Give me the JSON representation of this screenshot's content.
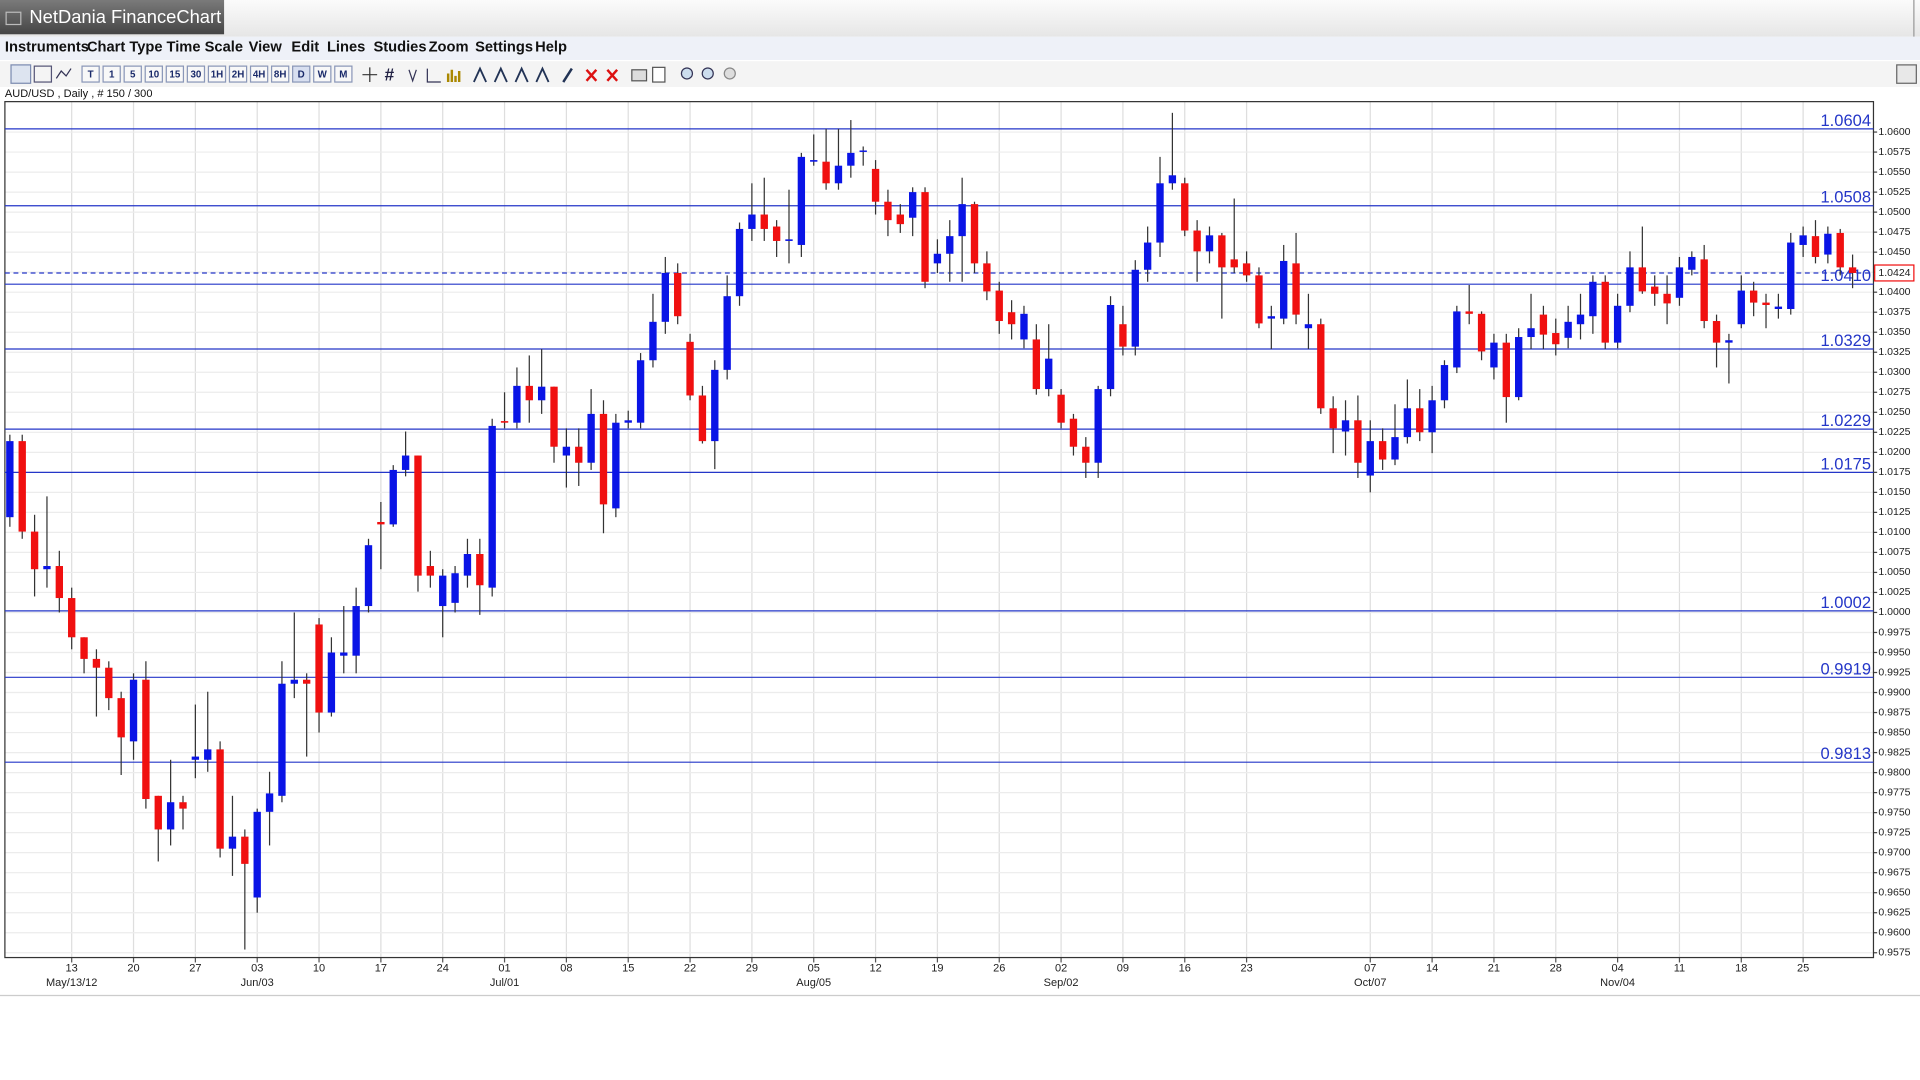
{
  "window": {
    "title": "NetDania FinanceChart",
    "menu": [
      "Instruments",
      "Chart Type",
      "Time Scale",
      "View",
      "Edit",
      "Lines",
      "Studies",
      "Zoom",
      "Settings",
      "Help"
    ],
    "intervals": [
      "T",
      "1",
      "5",
      "10",
      "15",
      "30",
      "1H",
      "2H",
      "4H",
      "8H",
      "D",
      "W",
      "M"
    ],
    "instrument_label": "AUD/USD , Daily , # 150 / 300"
  },
  "chart_data": {
    "type": "candlestick",
    "up_color": "#0a14e6",
    "down_color": "#f01010",
    "level_color": "#2436c8",
    "grid": true,
    "ylim": [
      0.9569,
      1.0638
    ],
    "yticks": [
      {
        "value": 0.9575,
        "label": "0.9575"
      },
      {
        "value": 0.96,
        "label": "0.9600"
      },
      {
        "value": 0.9625,
        "label": "0.9625"
      },
      {
        "value": 0.965,
        "label": "0.9650"
      },
      {
        "value": 0.9675,
        "label": "0.9675"
      },
      {
        "value": 0.97,
        "label": "0.9700"
      },
      {
        "value": 0.9725,
        "label": "0.9725"
      },
      {
        "value": 0.975,
        "label": "0.9750"
      },
      {
        "value": 0.9775,
        "label": "0.9775"
      },
      {
        "value": 0.98,
        "label": "0.9800"
      },
      {
        "value": 0.9825,
        "label": "0.9825"
      },
      {
        "value": 0.985,
        "label": "0.9850"
      },
      {
        "value": 0.9875,
        "label": "0.9875"
      },
      {
        "value": 0.99,
        "label": "0.9900"
      },
      {
        "value": 0.9925,
        "label": "0.9925"
      },
      {
        "value": 0.995,
        "label": "0.9950"
      },
      {
        "value": 0.9975,
        "label": "0.9975"
      },
      {
        "value": 1.0,
        "label": "1.0000"
      },
      {
        "value": 1.0025,
        "label": "1.0025"
      },
      {
        "value": 1.005,
        "label": "1.0050"
      },
      {
        "value": 1.0075,
        "label": "1.0075"
      },
      {
        "value": 1.01,
        "label": "1.0100"
      },
      {
        "value": 1.0125,
        "label": "1.0125"
      },
      {
        "value": 1.015,
        "label": "1.0150"
      },
      {
        "value": 1.0175,
        "label": "1.0175"
      },
      {
        "value": 1.02,
        "label": "1.0200"
      },
      {
        "value": 1.0225,
        "label": "1.0225"
      },
      {
        "value": 1.025,
        "label": "1.0250"
      },
      {
        "value": 1.0275,
        "label": "1.0275"
      },
      {
        "value": 1.03,
        "label": "1.0300"
      },
      {
        "value": 1.0325,
        "label": "1.0325"
      },
      {
        "value": 1.035,
        "label": "1.0350"
      },
      {
        "value": 1.0375,
        "label": "1.0375"
      },
      {
        "value": 1.04,
        "label": "1.0400"
      },
      {
        "value": 1.0425,
        "label": "1.0425"
      },
      {
        "value": 1.045,
        "label": "1.0450"
      },
      {
        "value": 1.0475,
        "label": "1.0475"
      },
      {
        "value": 1.05,
        "label": "1.0500"
      },
      {
        "value": 1.0525,
        "label": "1.0525"
      },
      {
        "value": 1.055,
        "label": "1.0550"
      },
      {
        "value": 1.0575,
        "label": "1.0575"
      },
      {
        "value": 1.06,
        "label": "1.0600"
      }
    ],
    "levels": [
      1.0604,
      1.0508,
      {
        "value": 1.041,
        "label": "1.0410"
      },
      1.0329,
      1.0229,
      1.0175,
      1.0002,
      0.9919,
      0.9813
    ],
    "last_price": 1.0424,
    "categories": [
      null,
      null,
      null,
      null,
      null,
      "13",
      null,
      null,
      null,
      null,
      "20",
      null,
      null,
      null,
      null,
      "27",
      null,
      null,
      null,
      null,
      "03",
      null,
      null,
      null,
      null,
      "10",
      null,
      null,
      null,
      null,
      "17",
      null,
      null,
      null,
      null,
      "24",
      null,
      null,
      null,
      null,
      "01",
      null,
      null,
      null,
      null,
      "08",
      null,
      null,
      null,
      null,
      "15",
      null,
      null,
      null,
      null,
      "22",
      null,
      null,
      null,
      null,
      "29",
      null,
      null,
      null,
      null,
      "05",
      null,
      null,
      null,
      null,
      "12",
      null,
      null,
      null,
      null,
      "19",
      null,
      null,
      null,
      null,
      "26",
      null,
      null,
      null,
      null,
      "02",
      null,
      null,
      null,
      null,
      "09",
      null,
      null,
      null,
      null,
      "16",
      null,
      null,
      null,
      null,
      "23",
      null,
      null,
      null,
      null,
      null,
      null,
      null,
      null,
      null,
      "07",
      null,
      null,
      null,
      null,
      "14",
      null,
      null,
      null,
      null,
      "21",
      null,
      null,
      null,
      null,
      "28",
      null,
      null,
      null,
      null,
      "04",
      null,
      null,
      null,
      null,
      "11",
      null,
      null,
      null,
      null,
      "18",
      null,
      null,
      null,
      null,
      "25",
      null,
      null,
      null,
      null
    ],
    "month_labels": [
      null,
      null,
      null,
      null,
      null,
      "May/13/12",
      null,
      null,
      null,
      null,
      null,
      null,
      null,
      null,
      null,
      null,
      null,
      null,
      null,
      null,
      "Jun/03",
      null,
      null,
      null,
      null,
      null,
      null,
      null,
      null,
      null,
      null,
      null,
      null,
      null,
      null,
      null,
      null,
      null,
      null,
      null,
      "Jul/01",
      null,
      null,
      null,
      null,
      null,
      null,
      null,
      null,
      null,
      null,
      null,
      null,
      null,
      null,
      null,
      null,
      null,
      null,
      null,
      null,
      null,
      null,
      null,
      null,
      "Aug/05",
      null,
      null,
      null,
      null,
      null,
      null,
      null,
      null,
      null,
      null,
      null,
      null,
      null,
      null,
      null,
      null,
      null,
      null,
      null,
      "Sep/02",
      null,
      null,
      null,
      null,
      null,
      null,
      null,
      null,
      null,
      null,
      null,
      null,
      null,
      null,
      null,
      null,
      null,
      null,
      null,
      null,
      null,
      null,
      null,
      null,
      "Oct/07",
      null,
      null,
      null,
      null,
      null,
      null,
      null,
      null,
      null,
      null,
      null,
      null,
      null,
      null,
      null,
      null,
      null,
      null,
      null,
      "Nov/04",
      null,
      null,
      null,
      null,
      null,
      null,
      null,
      null,
      null,
      null,
      null,
      null,
      null,
      null,
      null,
      null,
      null,
      null,
      null
    ],
    "open": [
      1.0119,
      1.0214,
      1.0101,
      1.0054,
      1.0058,
      1.0018,
      0.9969,
      0.9942,
      0.9931,
      0.9893,
      0.9839,
      0.9916,
      0.9771,
      0.9729,
      0.9763,
      0.9816,
      0.9816,
      0.9829,
      0.9705,
      0.972,
      0.9644,
      0.9751,
      0.9771,
      0.9911,
      0.9916,
      0.9985,
      0.9875,
      0.9946,
      0.9946,
      1.0008,
      1.0113,
      1.011,
      1.0178,
      1.0196,
      1.0058,
      1.0008,
      1.0012,
      1.0046,
      1.0073,
      1.0031,
      1.0239,
      1.0237,
      1.0283,
      1.0265,
      1.0282,
      1.0196,
      1.0207,
      1.0187,
      1.0248,
      1.013,
      1.0237,
      1.0237,
      1.0315,
      1.0363,
      1.0424,
      1.0338,
      1.0271,
      1.0214,
      1.0303,
      1.0395,
      1.0479,
      1.0497,
      1.0482,
      1.0464,
      1.0459,
      1.0563,
      1.0563,
      1.0536,
      1.0558,
      1.0576,
      1.0554,
      1.0513,
      1.0497,
      1.0493,
      1.0525,
      1.0436,
      1.0448,
      1.047,
      1.051,
      1.0436,
      1.0402,
      1.0375,
      1.0341,
      1.0341,
      1.0279,
      1.0272,
      1.0242,
      1.0207,
      1.0187,
      1.0279,
      1.036,
      1.0332,
      1.0428,
      1.0462,
      1.0536,
      1.0536,
      1.0477,
      1.0451,
      1.0471,
      1.0441,
      1.0436,
      1.0421,
      1.0367,
      1.0367,
      1.0436,
      1.0355,
      1.036,
      1.0255,
      1.0226,
      1.024,
      1.0171,
      1.0214,
      1.0191,
      1.0219,
      1.0255,
      1.0225,
      1.0265,
      1.0306,
      1.0376,
      1.0373,
      1.0306,
      1.0337,
      1.0269,
      1.0344,
      1.0372,
      1.0349,
      1.0343,
      1.036,
      1.037,
      1.0413,
      1.0337,
      1.0383,
      1.0431,
      1.0407,
      1.0398,
      1.0393,
      1.0428,
      1.0441,
      1.0364,
      1.0337,
      1.036,
      1.0402,
      1.0387,
      1.0379,
      1.0379,
      1.0459,
      1.047,
      1.0447,
      1.0474,
      1.0431
    ],
    "high": [
      1.0222,
      1.0222,
      1.0122,
      1.0145,
      1.0077,
      1.0031,
      0.9969,
      0.9954,
      0.9939,
      0.9901,
      0.9924,
      0.9939,
      0.9771,
      0.9816,
      0.9771,
      0.9885,
      0.9901,
      0.9839,
      0.9771,
      0.9729,
      0.9755,
      0.9801,
      0.9939,
      1.0,
      0.9924,
      0.9993,
      0.9969,
      1.0008,
      1.0031,
      1.0092,
      1.0138,
      1.0184,
      1.0226,
      1.0196,
      1.0077,
      1.0054,
      1.0058,
      1.0092,
      1.0092,
      1.0242,
      1.0275,
      1.0306,
      1.0321,
      1.0329,
      1.0282,
      1.023,
      1.023,
      1.0279,
      1.0265,
      1.0248,
      1.0252,
      1.0324,
      1.0398,
      1.0444,
      1.0436,
      1.0348,
      1.0283,
      1.0315,
      1.0421,
      1.0487,
      1.0536,
      1.0543,
      1.049,
      1.0528,
      1.0574,
      1.0597,
      1.0604,
      1.0604,
      1.0615,
      1.0582,
      1.0565,
      1.0528,
      1.051,
      1.0531,
      1.0531,
      1.0466,
      1.049,
      1.0543,
      1.0513,
      1.0451,
      1.0413,
      1.039,
      1.0383,
      1.036,
      1.036,
      1.0279,
      1.0248,
      1.0219,
      1.0283,
      1.0395,
      1.0383,
      1.044,
      1.0482,
      1.0569,
      1.0624,
      1.0543,
      1.049,
      1.0482,
      1.0474,
      1.0517,
      1.0451,
      1.0431,
      1.0383,
      1.0459,
      1.0474,
      1.0398,
      1.0367,
      1.027,
      1.0265,
      1.0271,
      1.024,
      1.023,
      1.026,
      1.0291,
      1.0279,
      1.0283,
      1.0315,
      1.0383,
      1.0409,
      1.0376,
      1.0348,
      1.0348,
      1.0355,
      1.0398,
      1.0383,
      1.0367,
      1.0383,
      1.0398,
      1.0421,
      1.0421,
      1.0398,
      1.0451,
      1.0482,
      1.0421,
      1.0421,
      1.0444,
      1.0451,
      1.0459,
      1.0372,
      1.0348,
      1.0421,
      1.0413,
      1.0398,
      1.0398,
      1.0474,
      1.0482,
      1.049,
      1.0482,
      1.0479,
      1.0447
    ],
    "low": [
      1.0107,
      1.0092,
      1.002,
      1.0031,
      1.0,
      0.9954,
      0.9924,
      0.987,
      0.9878,
      0.9797,
      0.9816,
      0.9755,
      0.9689,
      0.9709,
      0.9729,
      0.9793,
      0.9801,
      0.9694,
      0.9671,
      0.9579,
      0.9625,
      0.9709,
      0.9763,
      0.9893,
      0.982,
      0.985,
      0.987,
      0.9924,
      0.9924,
      1.0,
      1.0054,
      1.0107,
      1.017,
      1.0026,
      1.0031,
      0.9969,
      1.0,
      1.0031,
      0.9997,
      1.002,
      1.023,
      1.023,
      1.0237,
      1.0248,
      1.0187,
      1.0156,
      1.0158,
      1.0178,
      1.0099,
      1.0119,
      1.023,
      1.023,
      1.0306,
      1.0348,
      1.036,
      1.0265,
      1.0211,
      1.0179,
      1.0291,
      1.0383,
      1.0464,
      1.0464,
      1.0444,
      1.0436,
      1.0444,
      1.0558,
      1.0528,
      1.0528,
      1.0543,
      1.0558,
      1.0497,
      1.047,
      1.0474,
      1.047,
      1.0405,
      1.0424,
      1.0413,
      1.0413,
      1.0424,
      1.039,
      1.0348,
      1.0341,
      1.033,
      1.0272,
      1.027,
      1.023,
      1.0196,
      1.0168,
      1.0168,
      1.027,
      1.0321,
      1.0321,
      1.0413,
      1.0444,
      1.0528,
      1.047,
      1.0413,
      1.0436,
      1.0367,
      1.0424,
      1.0413,
      1.0355,
      1.0329,
      1.036,
      1.036,
      1.0329,
      1.0248,
      1.0199,
      1.0196,
      1.0168,
      1.015,
      1.0178,
      1.0184,
      1.0211,
      1.0214,
      1.0199,
      1.0255,
      1.0299,
      1.036,
      1.0315,
      1.0291,
      1.0237,
      1.0265,
      1.0329,
      1.0329,
      1.0321,
      1.033,
      1.0341,
      1.0348,
      1.0329,
      1.033,
      1.0375,
      1.0398,
      1.0383,
      1.036,
      1.0383,
      1.0421,
      1.0355,
      1.0306,
      1.0286,
      1.0355,
      1.037,
      1.0355,
      1.0367,
      1.0372,
      1.0444,
      1.0436,
      1.0436,
      1.0421,
      1.0405
    ],
    "close": [
      1.0214,
      1.0101,
      1.0054,
      1.0058,
      1.0018,
      0.9969,
      0.9942,
      0.9931,
      0.9893,
      0.9844,
      0.9916,
      0.9767,
      0.9729,
      0.9763,
      0.9755,
      0.982,
      0.9829,
      0.9705,
      0.972,
      0.9686,
      0.9751,
      0.9774,
      0.9911,
      0.9916,
      0.9911,
      0.9875,
      0.995,
      0.995,
      1.0008,
      1.0084,
      1.011,
      1.0178,
      1.0196,
      1.0046,
      1.0046,
      1.0046,
      1.0049,
      1.0073,
      1.0034,
      1.0233,
      1.0237,
      1.0283,
      1.0265,
      1.0282,
      1.0207,
      1.0207,
      1.0187,
      1.0248,
      1.0135,
      1.0237,
      1.024,
      1.0315,
      1.0363,
      1.0424,
      1.037,
      1.0271,
      1.0214,
      1.0303,
      1.0395,
      1.0479,
      1.0497,
      1.0479,
      1.0464,
      1.0466,
      1.0569,
      1.0565,
      1.0536,
      1.0558,
      1.0574,
      1.0577,
      1.0513,
      1.049,
      1.0485,
      1.0525,
      1.0413,
      1.0448,
      1.047,
      1.051,
      1.0436,
      1.0401,
      1.0364,
      1.036,
      1.0373,
      1.0279,
      1.0317,
      1.0237,
      1.0207,
      1.0187,
      1.0279,
      1.0384,
      1.0332,
      1.0428,
      1.0462,
      1.0536,
      1.0546,
      1.0477,
      1.0451,
      1.0471,
      1.0431,
      1.0431,
      1.0421,
      1.0361,
      1.037,
      1.0439,
      1.0372,
      1.036,
      1.0255,
      1.023,
      1.024,
      1.0187,
      1.0214,
      1.0191,
      1.0219,
      1.0255,
      1.0225,
      1.0265,
      1.0309,
      1.0376,
      1.0373,
      1.0326,
      1.0337,
      1.0269,
      1.0344,
      1.0355,
      1.0347,
      1.0335,
      1.0363,
      1.0372,
      1.0413,
      1.0337,
      1.0383,
      1.0431,
      1.0401,
      1.0398,
      1.0386,
      1.0431,
      1.0444,
      1.0364,
      1.0337,
      1.034,
      1.0402,
      1.0387,
      1.0384,
      1.0382,
      1.0462,
      1.0471,
      1.0444,
      1.0473,
      1.0431,
      1.0424
    ]
  }
}
